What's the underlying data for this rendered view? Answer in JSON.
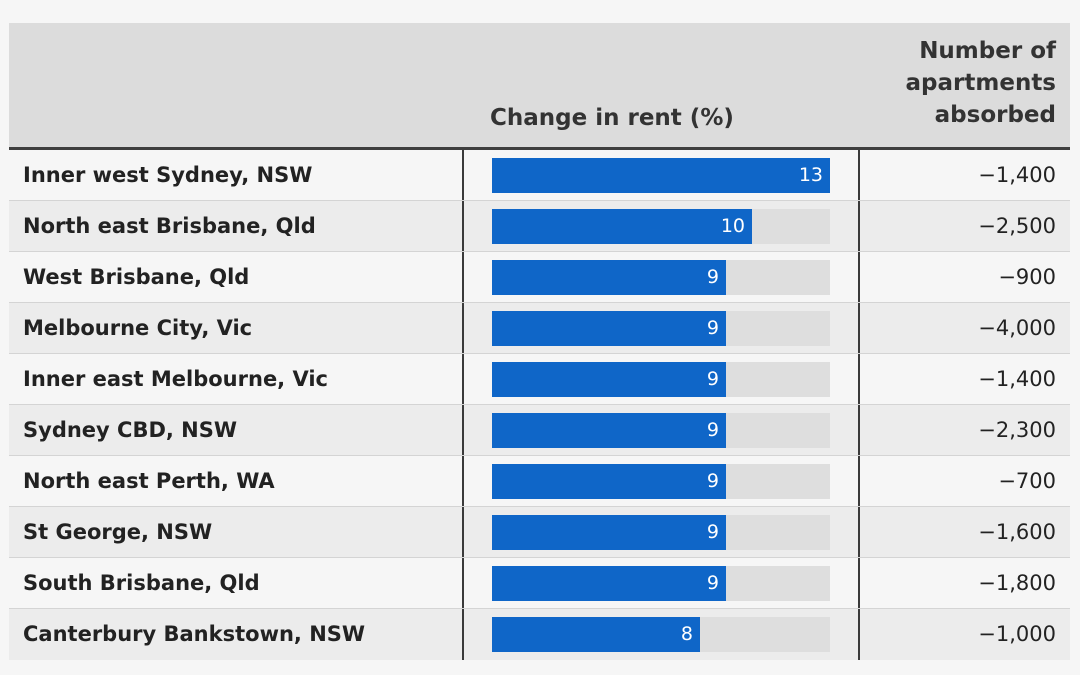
{
  "header": {
    "rent_label": "Change in rent (%)",
    "apts_label": "Number of apartments absorbed"
  },
  "colors": {
    "bar": "#0f66c8",
    "track": "#dedede",
    "header_bg": "#dcdcdc"
  },
  "chart_data": {
    "type": "table",
    "title": "",
    "columns": [
      "",
      "Change in rent (%)",
      "Number of apartments absorbed"
    ],
    "xlim": [
      0,
      13
    ],
    "rows": [
      {
        "region": "Inner west Sydney, NSW",
        "rent_change": 13,
        "apartments": "−1,400"
      },
      {
        "region": "North east Brisbane, Qld",
        "rent_change": 10,
        "apartments": "−2,500"
      },
      {
        "region": "West Brisbane, Qld",
        "rent_change": 9,
        "apartments": "−900"
      },
      {
        "region": "Melbourne City, Vic",
        "rent_change": 9,
        "apartments": "−4,000"
      },
      {
        "region": "Inner east Melbourne, Vic",
        "rent_change": 9,
        "apartments": "−1,400"
      },
      {
        "region": "Sydney CBD, NSW",
        "rent_change": 9,
        "apartments": "−2,300"
      },
      {
        "region": "North east Perth, WA",
        "rent_change": 9,
        "apartments": "−700"
      },
      {
        "region": "St George, NSW",
        "rent_change": 9,
        "apartments": "−1,600"
      },
      {
        "region": "South Brisbane, Qld",
        "rent_change": 9,
        "apartments": "−1,800"
      },
      {
        "region": "Canterbury Bankstown, NSW",
        "rent_change": 8,
        "apartments": "−1,000"
      }
    ]
  }
}
